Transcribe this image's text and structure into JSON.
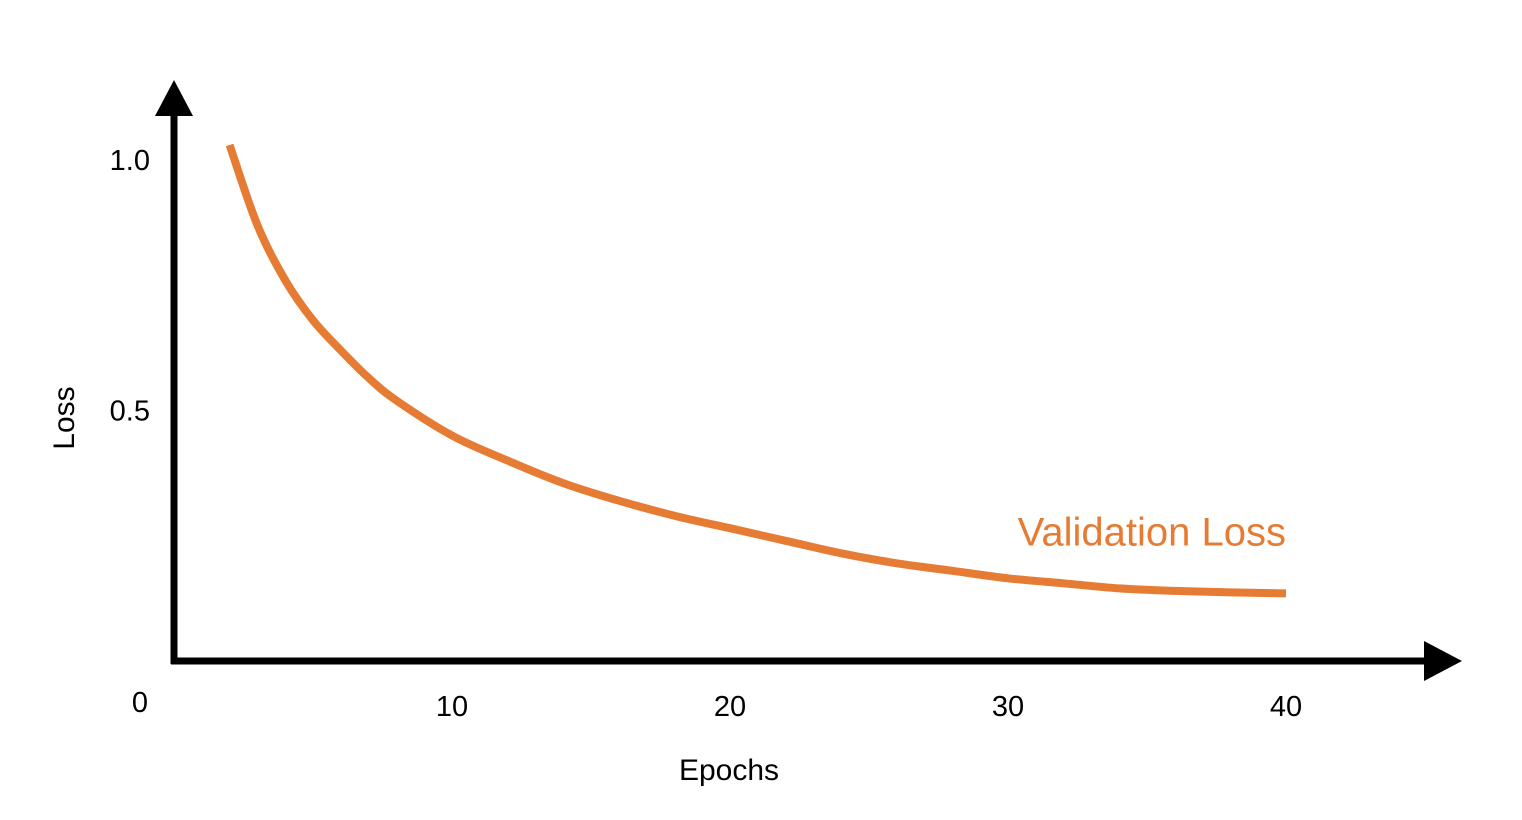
{
  "chart_data": {
    "type": "line",
    "title": "",
    "xlabel": "Epochs",
    "ylabel": "Loss",
    "origin_label": "0",
    "xlim": [
      0,
      40
    ],
    "ylim": [
      0,
      1.0
    ],
    "x_ticks": [
      {
        "value": 10,
        "label": "10"
      },
      {
        "value": 20,
        "label": "20"
      },
      {
        "value": 30,
        "label": "30"
      },
      {
        "value": 40,
        "label": "40"
      }
    ],
    "y_ticks": [
      {
        "value": 0.5,
        "label": "0.5"
      },
      {
        "value": 1.0,
        "label": "1.0"
      }
    ],
    "grid": false,
    "legend": "none",
    "series": [
      {
        "name": "Validation Loss",
        "color": "#E67C34",
        "x": [
          2,
          3,
          4,
          5,
          6,
          7,
          8,
          10,
          12,
          14,
          16,
          18,
          20,
          22,
          24,
          26,
          28,
          30,
          32,
          34,
          36,
          38,
          40
        ],
        "y": [
          1.03,
          0.87,
          0.76,
          0.68,
          0.62,
          0.565,
          0.52,
          0.45,
          0.4,
          0.355,
          0.32,
          0.29,
          0.265,
          0.24,
          0.215,
          0.195,
          0.18,
          0.165,
          0.155,
          0.145,
          0.14,
          0.137,
          0.135
        ]
      }
    ]
  }
}
